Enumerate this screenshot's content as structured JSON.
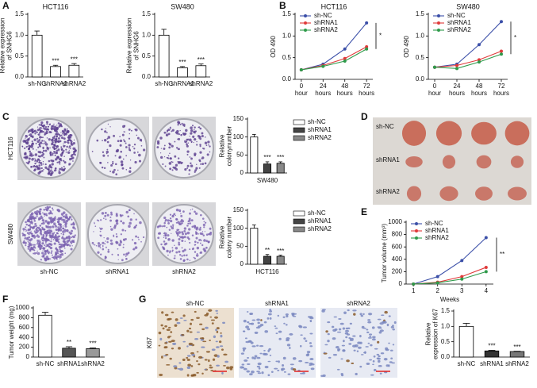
{
  "panels": [
    "A",
    "B",
    "C",
    "D",
    "E",
    "F",
    "G"
  ],
  "colony_images": {
    "rows": [
      "HCT116",
      "SW480"
    ],
    "columns": [
      "sh-NC",
      "shRNA1",
      "shRNA2"
    ]
  },
  "tumor_image": {
    "rows": [
      "sh-NC",
      "shRNA1",
      "shRNA2"
    ]
  },
  "ihc_images": {
    "columns": [
      "sh-NC",
      "shRNA1",
      "shRNA2"
    ],
    "row_label": "K67"
  },
  "chart_data": [
    {
      "type": "bar",
      "title": "HCT116",
      "ylabel": "Relative expression of SNHG6",
      "categories": [
        "sh-NC",
        "shRNA1",
        "shRNA2"
      ],
      "values": [
        1.0,
        0.25,
        0.28
      ],
      "errors": [
        0.1,
        0.03,
        0.04
      ],
      "colors": [
        "#ffffff",
        "#ffffff",
        "#ffffff"
      ],
      "annotations": [
        null,
        "***",
        "***"
      ],
      "ylim": [
        0,
        1.5
      ],
      "yticks": [
        {
          "value": 0,
          "label": "0.0"
        },
        0.5,
        {
          "value": 1,
          "label": "1.0"
        },
        1.5
      ]
    },
    {
      "type": "bar",
      "title": "SW480",
      "ylabel": "Relative expression of SNHG6",
      "categories": [
        "sh-NC",
        "shRNA1",
        "shRNA2"
      ],
      "values": [
        1.0,
        0.22,
        0.27
      ],
      "errors": [
        0.14,
        0.03,
        0.04
      ],
      "colors": [
        "#ffffff",
        "#ffffff",
        "#ffffff"
      ],
      "annotations": [
        null,
        "***",
        "***"
      ],
      "ylim": [
        0,
        1.5
      ],
      "yticks": [
        {
          "value": 0,
          "label": "0.0"
        },
        0.5,
        {
          "value": 1,
          "label": "1.0"
        },
        1.5
      ]
    },
    {
      "type": "line",
      "title": "HCT116",
      "ylabel": "OD 490",
      "categories": [
        "0 hour",
        "24 hours",
        "48 hours",
        "72 hours"
      ],
      "series": [
        {
          "name": "sh-NC",
          "color": "#3b4fa8",
          "values": [
            0.22,
            0.35,
            0.7,
            1.3
          ]
        },
        {
          "name": "shRNA1",
          "color": "#e03a3a",
          "values": [
            0.22,
            0.32,
            0.48,
            0.75
          ]
        },
        {
          "name": "shRNA2",
          "color": "#2e9a4a",
          "values": [
            0.22,
            0.3,
            0.42,
            0.7
          ]
        }
      ],
      "ylim": [
        0,
        1.5
      ],
      "yticks": [
        {
          "value": 0,
          "label": "0.0"
        },
        0.5,
        {
          "value": 1,
          "label": "1.0"
        },
        1.5
      ],
      "legend": "upper left",
      "annotation": "*"
    },
    {
      "type": "line",
      "title": "SW480",
      "ylabel": "OD 490",
      "categories": [
        "0 hour",
        "24 hours",
        "48 hours",
        "72 hours"
      ],
      "series": [
        {
          "name": "sh-NC",
          "color": "#3b4fa8",
          "values": [
            0.28,
            0.35,
            0.8,
            1.33
          ]
        },
        {
          "name": "shRNA1",
          "color": "#e03a3a",
          "values": [
            0.28,
            0.32,
            0.45,
            0.65
          ]
        },
        {
          "name": "shRNA2",
          "color": "#2e9a4a",
          "values": [
            0.28,
            0.25,
            0.4,
            0.58
          ]
        }
      ],
      "ylim": [
        0,
        1.5
      ],
      "yticks": [
        {
          "value": 0,
          "label": "0.0"
        },
        0.5,
        {
          "value": 1,
          "label": "1.0"
        },
        1.5
      ],
      "legend": "upper left",
      "annotation": "*"
    },
    {
      "type": "bar",
      "ylabel": "Relative colonynumber",
      "xlabel": "SW480",
      "categories": [
        "sh-NC",
        "shRNA1",
        "shRNA2"
      ],
      "values": [
        100,
        25,
        27
      ],
      "errors": [
        7,
        6,
        4
      ],
      "colors": [
        "#ffffff",
        "#444444",
        "#888888"
      ],
      "annotations": [
        null,
        "***",
        "***"
      ],
      "ylim": [
        0,
        150
      ],
      "yticks": [
        0,
        50,
        100,
        150
      ],
      "legend": "right"
    },
    {
      "type": "bar",
      "ylabel": "Relative colony number",
      "xlabel": "HCT116",
      "categories": [
        "sh-NC",
        "shRNA1",
        "shRNA2"
      ],
      "values": [
        100,
        22,
        22
      ],
      "errors": [
        9,
        5,
        3
      ],
      "colors": [
        "#ffffff",
        "#444444",
        "#888888"
      ],
      "annotations": [
        null,
        "**",
        "***"
      ],
      "ylim": [
        0,
        150
      ],
      "yticks": [
        0,
        50,
        100,
        150
      ],
      "legend": "right"
    },
    {
      "type": "line",
      "ylabel": "Tumor volume (mm³)",
      "xlabel": "Weeks",
      "x": [
        1,
        2,
        3,
        4
      ],
      "series": [
        {
          "name": "sh-NC",
          "color": "#3b4fa8",
          "values": [
            0,
            120,
            380,
            750
          ]
        },
        {
          "name": "shRNA1",
          "color": "#e03a3a",
          "values": [
            0,
            30,
            120,
            270
          ]
        },
        {
          "name": "shRNA2",
          "color": "#2e9a4a",
          "values": [
            0,
            20,
            80,
            200
          ]
        }
      ],
      "xlim": [
        0.7,
        4.3
      ],
      "xticks": [
        1,
        2,
        3,
        4
      ],
      "ylim": [
        0,
        1000
      ],
      "yticks": [
        0,
        200,
        400,
        600,
        800,
        1000
      ],
      "legend": "upper left",
      "annotation": "**"
    },
    {
      "type": "bar",
      "ylabel": "Tumor weight (mg)",
      "categories": [
        "sh-NC",
        "shRNA1",
        "shRNA2"
      ],
      "values": [
        850,
        180,
        170
      ],
      "errors": [
        60,
        30,
        15
      ],
      "colors": [
        "#ffffff",
        "#555555",
        "#999999"
      ],
      "annotations": [
        null,
        "**",
        "***"
      ],
      "ylim": [
        0,
        1000
      ],
      "yticks": [
        0,
        200,
        400,
        600,
        800,
        1000
      ]
    },
    {
      "type": "bar",
      "ylabel": "Relative expression of K67",
      "categories": [
        "sh-NC",
        "shRNA1",
        "shRNA2"
      ],
      "values": [
        1.0,
        0.2,
        0.18
      ],
      "errors": [
        0.1,
        0.02,
        0.01
      ],
      "colors": [
        "#ffffff",
        "#333333",
        "#777777"
      ],
      "annotations": [
        null,
        "***",
        "***"
      ],
      "ylim": [
        0,
        1.5
      ],
      "yticks": [
        {
          "value": 0,
          "label": "0.0"
        },
        0.5,
        {
          "value": 1,
          "label": "1.0"
        },
        1.5
      ]
    }
  ]
}
